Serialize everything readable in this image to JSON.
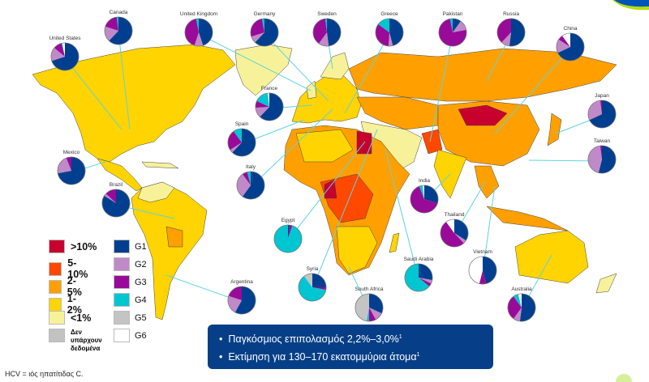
{
  "legend": {
    "prevalence": [
      {
        "label": ">10%",
        "color": "#c8002e"
      },
      {
        "label": "5-10%",
        "color": "#ff4800"
      },
      {
        "label": "2-5%",
        "color": "#ffa000"
      },
      {
        "label": "1-2%",
        "color": "#ffd400"
      },
      {
        "label": "<1%",
        "color": "#f7f29a"
      },
      {
        "label": "Δεν υπάρχουν δεδομένα",
        "color": "#c2c2c2"
      }
    ],
    "genotypes": [
      {
        "label": "G1",
        "color": "#003f8f"
      },
      {
        "label": "G2",
        "color": "#c08ac8"
      },
      {
        "label": "G3",
        "color": "#990a99"
      },
      {
        "label": "G4",
        "color": "#00c6d2"
      },
      {
        "label": "G5",
        "color": "#c4c4c4"
      },
      {
        "label": "G6",
        "color": "#ffffff"
      }
    ]
  },
  "genotype_distribution": [
    {
      "country": "United States",
      "shares": [
        70,
        16,
        10,
        1,
        0,
        3
      ]
    },
    {
      "country": "Canada",
      "shares": [
        62,
        18,
        18,
        2,
        0,
        0
      ]
    },
    {
      "country": "United Kingdom",
      "shares": [
        45,
        10,
        42,
        3,
        0,
        0
      ]
    },
    {
      "country": "Germany",
      "shares": [
        62,
        8,
        27,
        3,
        0,
        0
      ]
    },
    {
      "country": "Sweden",
      "shares": [
        48,
        12,
        38,
        2,
        0,
        0
      ]
    },
    {
      "country": "Greece",
      "shares": [
        46,
        5,
        34,
        15,
        0,
        0
      ]
    },
    {
      "country": "Pakistan",
      "shares": [
        10,
        12,
        75,
        3,
        0,
        0
      ]
    },
    {
      "country": "Russia",
      "shares": [
        52,
        10,
        38,
        0,
        0,
        0
      ]
    },
    {
      "country": "China",
      "shares": [
        68,
        16,
        6,
        0,
        0,
        10
      ]
    },
    {
      "country": "France",
      "shares": [
        62,
        12,
        8,
        16,
        0,
        2
      ]
    },
    {
      "country": "Spain",
      "shares": [
        62,
        4,
        24,
        10,
        0,
        0
      ]
    },
    {
      "country": "Italy",
      "shares": [
        60,
        30,
        6,
        4,
        0,
        0
      ]
    },
    {
      "country": "Mexico",
      "shares": [
        72,
        22,
        6,
        0,
        0,
        0
      ]
    },
    {
      "country": "Brazil",
      "shares": [
        84,
        3,
        13,
        0,
        0,
        0
      ]
    },
    {
      "country": "Argentina",
      "shares": [
        58,
        22,
        20,
        0,
        0,
        0
      ]
    },
    {
      "country": "Egypt",
      "shares": [
        2,
        0,
        3,
        95,
        0,
        0
      ]
    },
    {
      "country": "Syria",
      "shares": [
        25,
        0,
        3,
        62,
        10,
        0
      ]
    },
    {
      "country": "South Africa",
      "shares": [
        32,
        10,
        8,
        3,
        47,
        0
      ]
    },
    {
      "country": "Saudi Arabia",
      "shares": [
        28,
        4,
        4,
        64,
        0,
        0
      ]
    },
    {
      "country": "India",
      "shares": [
        30,
        0,
        64,
        4,
        0,
        2
      ]
    },
    {
      "country": "Thailand",
      "shares": [
        34,
        4,
        52,
        0,
        0,
        10
      ]
    },
    {
      "country": "Vietnam",
      "shares": [
        46,
        0,
        8,
        0,
        0,
        46
      ]
    },
    {
      "country": "Australia",
      "shares": [
        52,
        8,
        30,
        6,
        0,
        4
      ]
    },
    {
      "country": "Japan",
      "shares": [
        68,
        30,
        2,
        0,
        0,
        0
      ]
    },
    {
      "country": "Taiwan",
      "shares": [
        54,
        44,
        2,
        0,
        0,
        0
      ]
    }
  ],
  "infobox": {
    "line1": "Παγκόσμιος επιπολασμός 2,2%–3,0%",
    "line1_ref": "1",
    "line2": "Εκτίμηση για 130–170 εκατομμύρια άτομα",
    "line2_ref": "1"
  },
  "footnote": "HCV = ιός ηπατίτιδας C."
}
